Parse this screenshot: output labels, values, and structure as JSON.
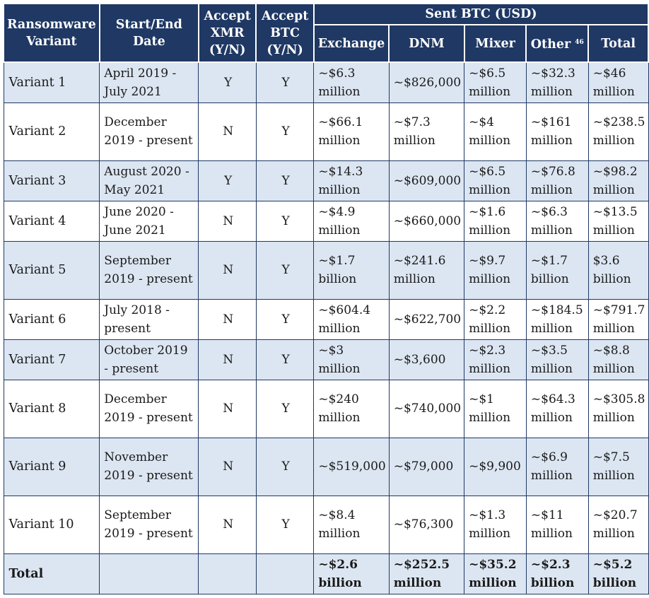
{
  "header": {
    "variant": "Ransomware Variant",
    "dates": "Start/End Date",
    "xmr": "Accept XMR (Y/N)",
    "btc": "Accept BTC (Y/N)",
    "sent_group": "Sent BTC (USD)",
    "exchange": "Exchange",
    "dnm": "DNM",
    "mixer": "Mixer",
    "other": "Other",
    "other_footnote": "46",
    "total": "Total"
  },
  "rows": [
    {
      "variant": "Variant 1",
      "dates": "April 2019 - July 2021",
      "xmr": "Y",
      "btc": "Y",
      "exchange": "~$6.3 million",
      "dnm": "~$826,000",
      "mixer": "~$6.5 million",
      "other": "~$32.3 million",
      "total": "~$46 million"
    },
    {
      "variant": "Variant 2",
      "dates": "December 2019 - present",
      "xmr": "N",
      "btc": "Y",
      "exchange": "~$66.1 million",
      "dnm": "~$7.3 million",
      "mixer": "~$4 million",
      "other": "~$161 million",
      "total": "~$238.5 million"
    },
    {
      "variant": "Variant 3",
      "dates": "August 2020 - May 2021",
      "xmr": "Y",
      "btc": "Y",
      "exchange": "~$14.3 million",
      "dnm": "~$609,000",
      "mixer": "~$6.5 million",
      "other": "~$76.8 million",
      "total": "~$98.2 million"
    },
    {
      "variant": "Variant 4",
      "dates": "June 2020 - June 2021",
      "xmr": "N",
      "btc": "Y",
      "exchange": "~$4.9 million",
      "dnm": "~$660,000",
      "mixer": "~$1.6 million",
      "other": "~$6.3 million",
      "total": "~$13.5 million"
    },
    {
      "variant": "Variant 5",
      "dates": "September 2019 - present",
      "xmr": "N",
      "btc": "Y",
      "exchange": "~$1.7 billion",
      "dnm": "~$241.6 million",
      "mixer": "~$9.7 million",
      "other": "~$1.7 billion",
      "total": "$3.6 billion"
    },
    {
      "variant": "Variant 6",
      "dates": "July 2018 - present",
      "xmr": "N",
      "btc": "Y",
      "exchange": "~$604.4 million",
      "dnm": "~$622,700",
      "mixer": "~$2.2 million",
      "other": "~$184.5 million",
      "total": "~$791.7 million"
    },
    {
      "variant": "Variant 7",
      "dates": "October 2019 - present",
      "xmr": "N",
      "btc": "Y",
      "exchange": "~$3 million",
      "dnm": "~$3,600",
      "mixer": "~$2.3 million",
      "other": "~$3.5 million",
      "total": "~$8.8 million"
    },
    {
      "variant": "Variant 8",
      "dates": "December 2019 - present",
      "xmr": "N",
      "btc": "Y",
      "exchange": "~$240 million",
      "dnm": "~$740,000",
      "mixer": "~$1 million",
      "other": "~$64.3 million",
      "total": "~$305.8 million"
    },
    {
      "variant": "Variant 9",
      "dates": "November 2019 - present",
      "xmr": "N",
      "btc": "Y",
      "exchange": "~$519,000",
      "dnm": "~$79,000",
      "mixer": "~$9,900",
      "other": "~$6.9 million",
      "total": "~$7.5 million"
    },
    {
      "variant": "Variant 10",
      "dates": "September 2019 - present",
      "xmr": "N",
      "btc": "Y",
      "exchange": "~$8.4 million",
      "dnm": "~$76,300",
      "mixer": "~$1.3 million",
      "other": "~$11 million",
      "total": "~$20.7 million"
    }
  ],
  "total_row": {
    "label": "Total",
    "exchange": "~$2.6 billion",
    "dnm": "~$252.5 million",
    "mixer": "~$35.2 million",
    "other": "~$2.3 billion",
    "total": "~$5.2 billion"
  }
}
